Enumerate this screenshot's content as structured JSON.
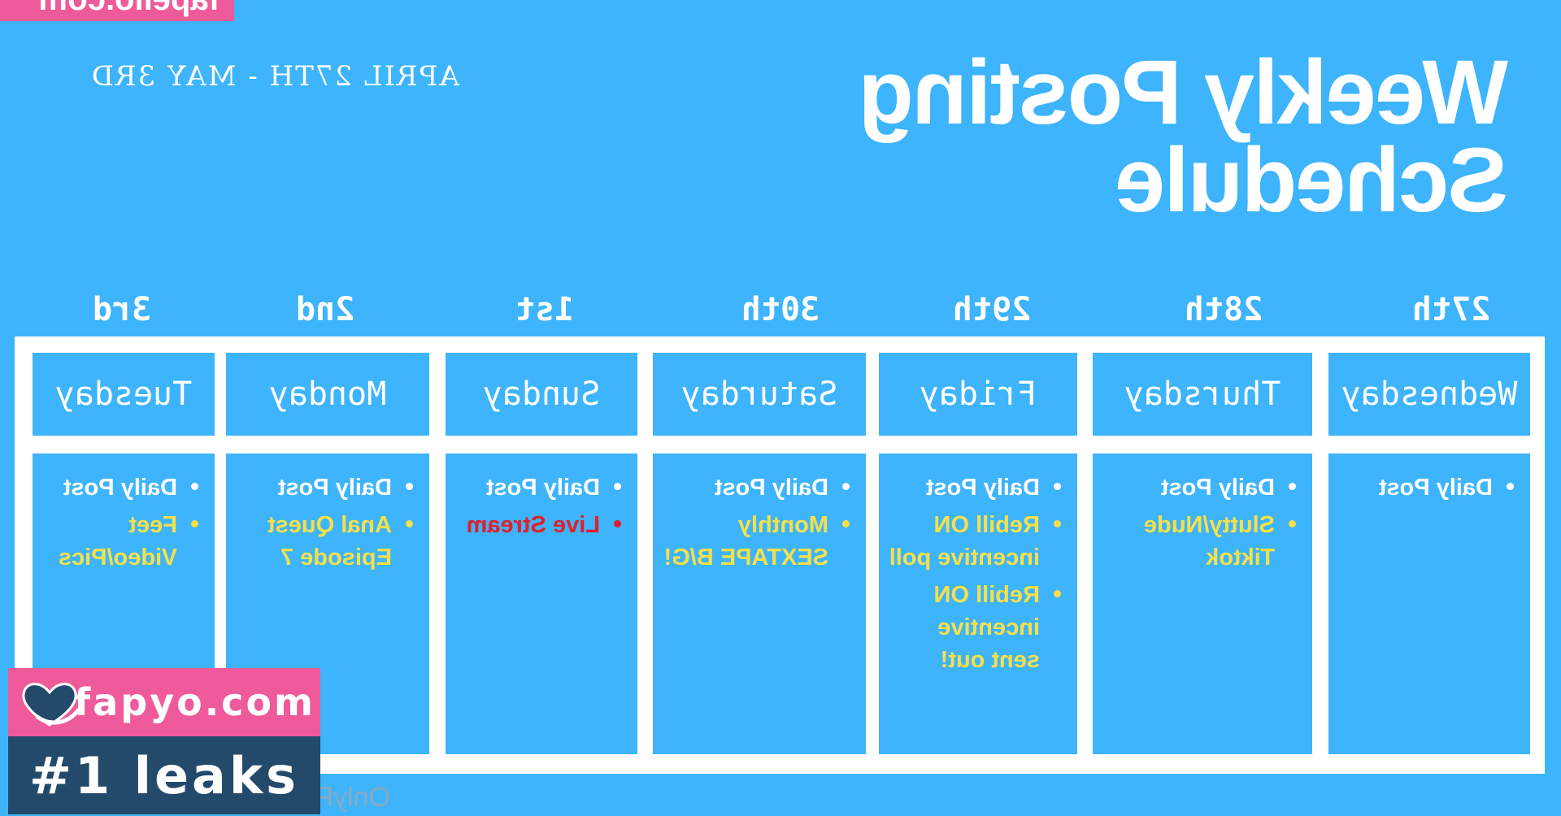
{
  "watermark_top": "fapello.com",
  "title": "Weekly Posting Schedule",
  "date_range": "APRIL 27TH - MAY 3RD",
  "columns": [
    {
      "date": "27th",
      "day": "Wednesday",
      "items": [
        {
          "text": "Daily Post",
          "color": "white"
        }
      ]
    },
    {
      "date": "28th",
      "day": "Thursday",
      "items": [
        {
          "text": "Daily Post",
          "color": "white"
        },
        {
          "text": "Slutty/Nude Tiktok",
          "color": "yellow"
        }
      ]
    },
    {
      "date": "29th",
      "day": "Friday",
      "items": [
        {
          "text": "Daily Post",
          "color": "white"
        },
        {
          "text": "Rebill ON incentive poll",
          "color": "yellow"
        },
        {
          "text": "Rebill ON incentive sent out!",
          "color": "yellow"
        }
      ]
    },
    {
      "date": "30th",
      "day": "Saturday",
      "items": [
        {
          "text": "Daily Post",
          "color": "white"
        },
        {
          "text": "Monthly SEXTAPE B/G!",
          "color": "yellow"
        }
      ]
    },
    {
      "date": "1st",
      "day": "Sunday",
      "items": [
        {
          "text": "Daily Post",
          "color": "white"
        },
        {
          "text": "Live Stream",
          "color": "red"
        }
      ]
    },
    {
      "date": "2nd",
      "day": "Monday",
      "items": [
        {
          "text": "Daily Post",
          "color": "white"
        },
        {
          "text": "Anal Quest Episode 7",
          "color": "yellow"
        }
      ]
    },
    {
      "date": "3rd",
      "day": "Tuesday",
      "items": [
        {
          "text": "Daily Post",
          "color": "white"
        },
        {
          "text": "Feet Video/Pics",
          "color": "yellow"
        }
      ]
    }
  ],
  "badge_site": "fapyo.com",
  "badge_tag": "#1 leaks",
  "watermark_bottom": "OnlyFans.com/kierafouna",
  "colors": {
    "background": "#3db4fb",
    "yellow_text": "#f5e04a",
    "red_text": "#e0202b",
    "badge_pink": "#ee5a9a",
    "badge_navy": "#234a6b"
  }
}
